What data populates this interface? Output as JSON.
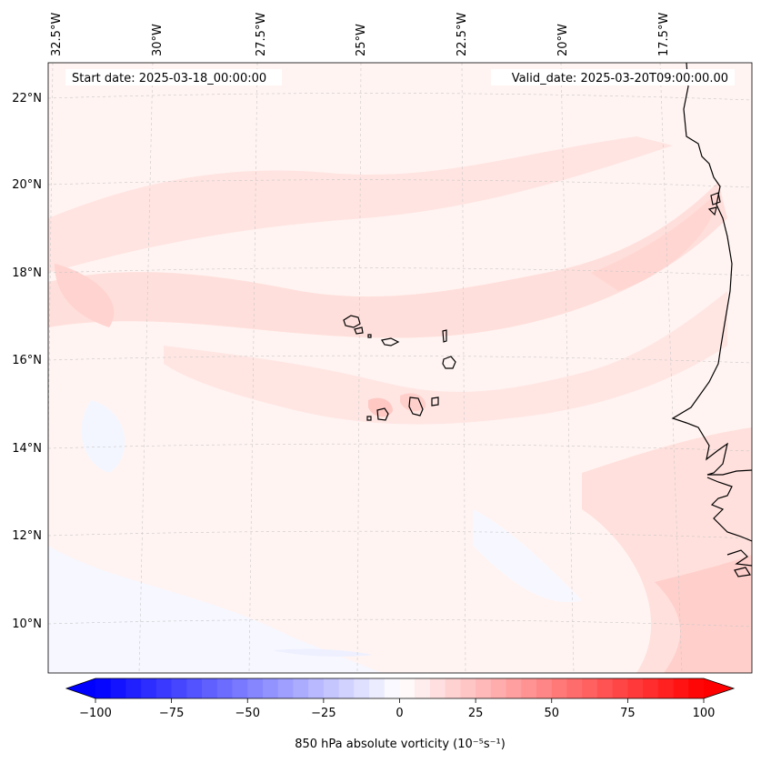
{
  "map": {
    "start_date": "Start date: 2025-03-18_00:00:00",
    "valid_date": "Valid_date: 2025-03-20T09:00:00.00",
    "longitude_labels": [
      "32.5°W",
      "30°W",
      "27.5°W",
      "25°W",
      "22.5°W",
      "20°W",
      "17.5°W"
    ],
    "latitude_labels": [
      "22°N",
      "20°N",
      "18°N",
      "16°N",
      "14°N",
      "12°N",
      "10°N"
    ],
    "field_colors": {
      "background": "#fff4f2",
      "band": "#ffe2df",
      "band_strong": "#ffd0cc",
      "negative": "#f4f6ff"
    },
    "coastline_color": "#000000",
    "gridline_color": "#c8c8c8"
  },
  "colorbar": {
    "label": "850 hPa absolute vorticity (10⁻⁵s⁻¹)",
    "ticks": [
      "−100",
      "−75",
      "−50",
      "−25",
      "0",
      "25",
      "50",
      "75",
      "100"
    ],
    "min": -100,
    "max": 100,
    "colormap": [
      "#0000ff",
      "#ffffff",
      "#ff0000"
    ],
    "extend": "both"
  }
}
